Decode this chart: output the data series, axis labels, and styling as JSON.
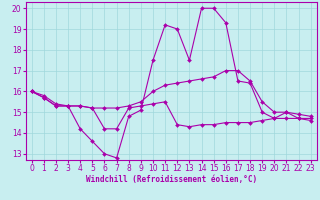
{
  "title": "",
  "xlabel": "Windchill (Refroidissement éolien,°C)",
  "bg_color": "#c8eef0",
  "line_color": "#aa00aa",
  "grid_color": "#a0d8dc",
  "xlim": [
    -0.5,
    23.5
  ],
  "ylim": [
    12.7,
    20.3
  ],
  "yticks": [
    13,
    14,
    15,
    16,
    17,
    18,
    19,
    20
  ],
  "xticks": [
    0,
    1,
    2,
    3,
    4,
    5,
    6,
    7,
    8,
    9,
    10,
    11,
    12,
    13,
    14,
    15,
    16,
    17,
    18,
    19,
    20,
    21,
    22,
    23
  ],
  "series1_x": [
    0,
    1,
    2,
    3,
    4,
    5,
    6,
    7,
    8,
    9,
    10,
    11,
    12,
    13,
    14,
    15,
    16,
    17,
    18,
    19,
    20,
    21,
    22,
    23
  ],
  "series1_y": [
    16.0,
    15.7,
    15.3,
    15.3,
    14.2,
    13.6,
    13.0,
    12.8,
    14.8,
    15.1,
    17.5,
    19.2,
    19.0,
    17.5,
    20.0,
    20.0,
    19.3,
    16.5,
    16.4,
    15.0,
    14.7,
    15.0,
    14.7,
    14.6
  ],
  "series2_x": [
    0,
    1,
    2,
    3,
    4,
    5,
    6,
    7,
    8,
    9,
    10,
    11,
    12,
    13,
    14,
    15,
    16,
    17,
    18,
    19,
    20,
    21,
    22,
    23
  ],
  "series2_y": [
    16.0,
    15.7,
    15.3,
    15.3,
    15.3,
    15.2,
    15.2,
    15.2,
    15.3,
    15.5,
    16.0,
    16.3,
    16.4,
    16.5,
    16.6,
    16.7,
    17.0,
    17.0,
    16.5,
    15.5,
    15.0,
    15.0,
    14.9,
    14.8
  ],
  "series3_x": [
    0,
    1,
    2,
    3,
    4,
    5,
    6,
    7,
    8,
    9,
    10,
    11,
    12,
    13,
    14,
    15,
    16,
    17,
    18,
    19,
    20,
    21,
    22,
    23
  ],
  "series3_y": [
    16.0,
    15.8,
    15.4,
    15.3,
    15.3,
    15.2,
    14.2,
    14.2,
    15.2,
    15.3,
    15.4,
    15.5,
    14.4,
    14.3,
    14.4,
    14.4,
    14.5,
    14.5,
    14.5,
    14.6,
    14.7,
    14.7,
    14.7,
    14.7
  ]
}
